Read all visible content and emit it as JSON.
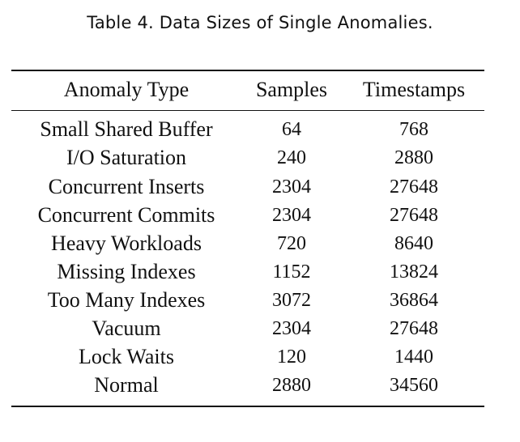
{
  "caption": "Table 4.  Data Sizes of Single Anomalies.",
  "table": {
    "headers": [
      "Anomaly Type",
      "Samples",
      "Timestamps"
    ],
    "rows": [
      {
        "type": "Small Shared Buffer",
        "samples": "64",
        "timestamps": "768"
      },
      {
        "type": "I/O Saturation",
        "samples": "240",
        "timestamps": "2880"
      },
      {
        "type": "Concurrent Inserts",
        "samples": "2304",
        "timestamps": "27648"
      },
      {
        "type": "Concurrent Commits",
        "samples": "2304",
        "timestamps": "27648"
      },
      {
        "type": "Heavy Workloads",
        "samples": "720",
        "timestamps": "8640"
      },
      {
        "type": "Missing Indexes",
        "samples": "1152",
        "timestamps": "13824"
      },
      {
        "type": "Too Many Indexes",
        "samples": "3072",
        "timestamps": "36864"
      },
      {
        "type": "Vacuum",
        "samples": "2304",
        "timestamps": "27648"
      },
      {
        "type": "Lock Waits",
        "samples": "120",
        "timestamps": "1440"
      },
      {
        "type": "Normal",
        "samples": "2880",
        "timestamps": "34560"
      }
    ]
  }
}
